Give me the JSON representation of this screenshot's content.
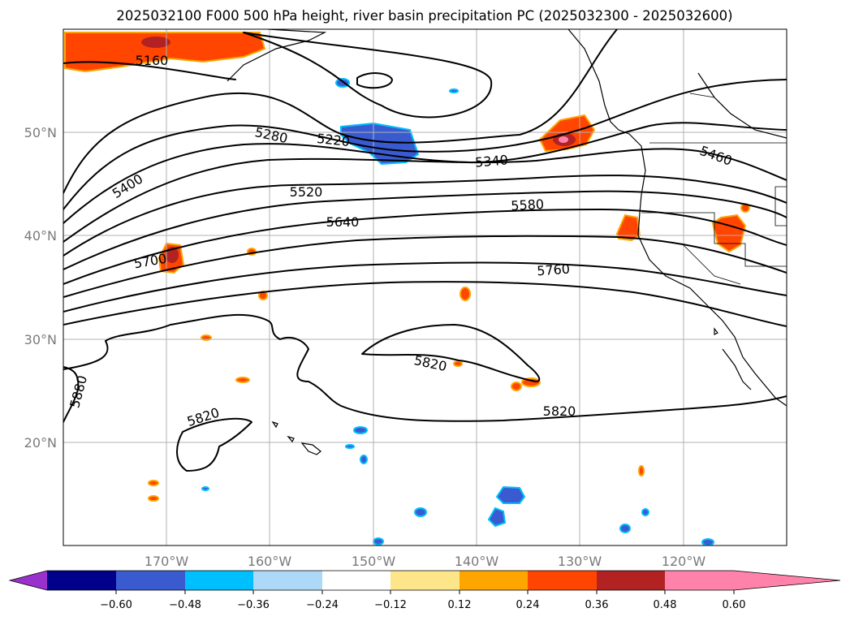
{
  "title": "2025032100 F000 500 hPa height, river basin precipitation PC (2025032300 - 2025032600)",
  "axes": {
    "lon_labels": [
      "170°W",
      "160°W",
      "150°W",
      "140°W",
      "130°W",
      "120°W"
    ],
    "lat_labels": [
      "50°N",
      "40°N",
      "30°N",
      "20°N"
    ]
  },
  "contour_labels": [
    "5160",
    "5220",
    "5280",
    "5340",
    "5400",
    "5460",
    "5520",
    "5580",
    "5640",
    "5700",
    "5760",
    "5820",
    "5820",
    "5820",
    "5880"
  ],
  "colorbar": {
    "ticks": [
      "−0.60",
      "−0.48",
      "−0.36",
      "−0.24",
      "−0.12",
      "0.12",
      "0.24",
      "0.36",
      "0.48",
      "0.60"
    ],
    "colors": [
      "#9932cc",
      "#00008b",
      "#3a5bd0",
      "#00bfff",
      "#add8f7",
      "#ffffff",
      "#fde68a",
      "#ffa500",
      "#ff4500",
      "#b22222",
      "#ff82ab"
    ]
  },
  "chart_data": {
    "type": "heatmap",
    "title": "2025032100 F000 500 hPa height, river basin precipitation PC (2025032300 - 2025032600)",
    "extent": {
      "lon": [
        -180,
        -110
      ],
      "lat": [
        10,
        60
      ]
    },
    "contour_field": "500 hPa height",
    "contour_levels": [
      5160,
      5220,
      5280,
      5340,
      5400,
      5460,
      5520,
      5580,
      5640,
      5700,
      5760,
      5820,
      5880
    ],
    "shaded_field": "river basin precipitation PC",
    "color_levels": [
      -0.6,
      -0.48,
      -0.36,
      -0.24,
      -0.12,
      0.12,
      0.24,
      0.36,
      0.48,
      0.6
    ],
    "colorbar_extend": "both",
    "grid": true
  }
}
